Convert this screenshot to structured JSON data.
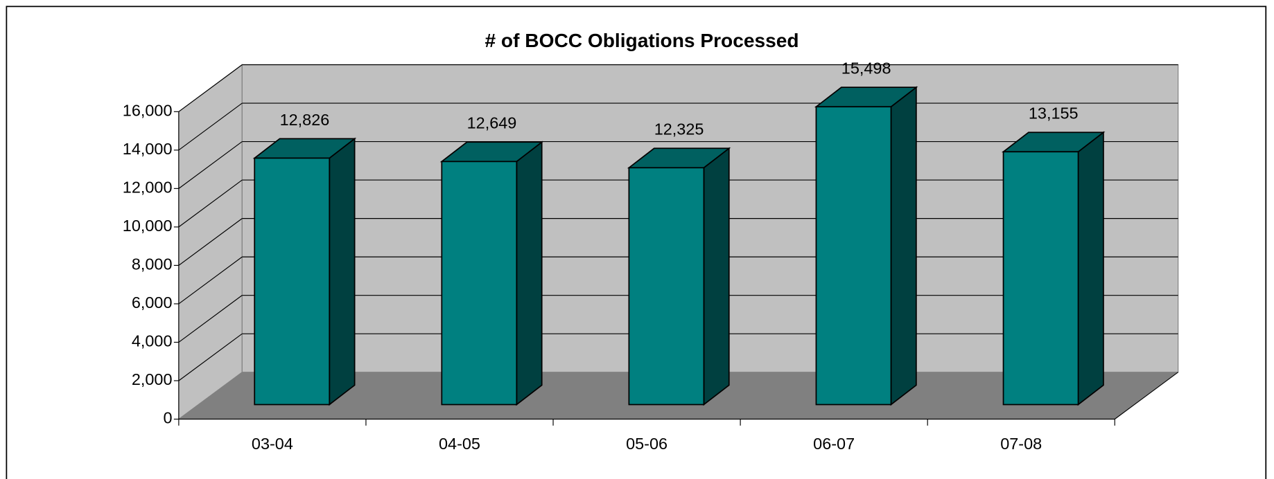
{
  "chart_data": {
    "type": "bar3d",
    "title": "# of BOCC Obligations Processed",
    "categories": [
      "03-04",
      "04-05",
      "05-06",
      "06-07",
      "07-08"
    ],
    "values": [
      12826,
      12649,
      12325,
      15498,
      13155
    ],
    "value_labels": [
      "12,826",
      "12,649",
      "12,325",
      "15,498",
      "13,155"
    ],
    "color": "#008080",
    "ylim": [
      0,
      16000
    ],
    "yticks": [
      0,
      {
        "value": 2000,
        "label": "2,000"
      },
      {
        "value": 4000,
        "label": "4,000"
      },
      {
        "value": 6000,
        "label": "6,000"
      },
      {
        "value": 8000,
        "label": "8,000"
      },
      {
        "value": 10000,
        "label": "10,000"
      },
      {
        "value": 12000,
        "label": "12,000"
      },
      {
        "value": 14000,
        "label": "14,000"
      },
      {
        "value": 16000,
        "label": "16,000"
      }
    ],
    "grid": true
  }
}
